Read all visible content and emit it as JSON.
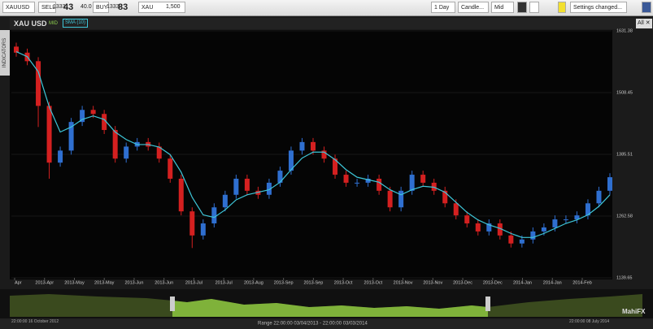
{
  "toolbar": {
    "symbol": "XAUUSD",
    "sell_label": "SELL",
    "sell_price_main": "1333.",
    "sell_price_pips": "43",
    "spread": "40.0",
    "buy_label": "BUY",
    "buy_price_main": "1333.",
    "buy_price_pips": "83",
    "asset": "XAU",
    "amount": "1,500",
    "period": "1 Day",
    "chart_style": "Candle...",
    "price_type": "Mid",
    "settings": "Settings changed..."
  },
  "chart_header": {
    "instrument": "XAU USD",
    "mid_badge": "MID",
    "indicator": "SMA (10)",
    "close_all": "All ✕",
    "side_tab": "INDICATORS"
  },
  "chart_data": {
    "type": "candlestick",
    "open": [
      1600,
      1588,
      1571,
      1482,
      1369,
      1393,
      1450,
      1474,
      1466,
      1434,
      1377,
      1401,
      1410,
      1401,
      1377,
      1337,
      1272,
      1224,
      1248,
      1280,
      1305,
      1337,
      1313,
      1305,
      1329,
      1353,
      1393,
      1410,
      1393,
      1377,
      1345,
      1329,
      1329,
      1337,
      1313,
      1280,
      1313,
      1345,
      1329,
      1313,
      1288,
      1264,
      1248,
      1232,
      1248,
      1224,
      1208,
      1216,
      1232,
      1240,
      1256,
      1256,
      1264,
      1288,
      1313
    ],
    "high": [
      1608,
      1596,
      1579,
      1490,
      1401,
      1458,
      1482,
      1482,
      1474,
      1442,
      1409,
      1418,
      1418,
      1409,
      1385,
      1345,
      1280,
      1256,
      1288,
      1313,
      1345,
      1345,
      1321,
      1337,
      1361,
      1401,
      1418,
      1418,
      1401,
      1385,
      1353,
      1337,
      1345,
      1345,
      1321,
      1321,
      1353,
      1353,
      1337,
      1321,
      1296,
      1272,
      1256,
      1256,
      1256,
      1232,
      1224,
      1240,
      1248,
      1264,
      1264,
      1272,
      1296,
      1321,
      1348
    ],
    "low": [
      1580,
      1563,
      1440,
      1337,
      1361,
      1385,
      1442,
      1458,
      1426,
      1369,
      1369,
      1393,
      1393,
      1369,
      1329,
      1264,
      1199,
      1216,
      1240,
      1272,
      1297,
      1305,
      1297,
      1297,
      1321,
      1345,
      1385,
      1385,
      1369,
      1337,
      1321,
      1321,
      1321,
      1305,
      1272,
      1272,
      1305,
      1321,
      1305,
      1280,
      1256,
      1240,
      1224,
      1224,
      1216,
      1200,
      1200,
      1208,
      1224,
      1232,
      1248,
      1248,
      1256,
      1280,
      1305
    ],
    "close": [
      1588,
      1571,
      1482,
      1369,
      1393,
      1450,
      1474,
      1466,
      1434,
      1377,
      1401,
      1410,
      1401,
      1377,
      1337,
      1272,
      1224,
      1248,
      1280,
      1305,
      1337,
      1313,
      1305,
      1329,
      1353,
      1393,
      1410,
      1393,
      1377,
      1345,
      1329,
      1329,
      1337,
      1313,
      1280,
      1313,
      1345,
      1329,
      1313,
      1288,
      1264,
      1248,
      1232,
      1248,
      1224,
      1208,
      1216,
      1232,
      1240,
      1256,
      1256,
      1264,
      1288,
      1313,
      1340
    ],
    "sma": {
      "name": "SMA (10)",
      "color": "#3ec6d8",
      "values": [
        1590,
        1580,
        1550,
        1480,
        1430,
        1440,
        1455,
        1462,
        1455,
        1430,
        1415,
        1405,
        1405,
        1400,
        1385,
        1350,
        1300,
        1265,
        1260,
        1275,
        1295,
        1305,
        1310,
        1315,
        1330,
        1355,
        1378,
        1390,
        1390,
        1375,
        1355,
        1340,
        1335,
        1330,
        1315,
        1305,
        1315,
        1322,
        1320,
        1310,
        1290,
        1270,
        1255,
        1245,
        1238,
        1228,
        1220,
        1220,
        1228,
        1238,
        1248,
        1255,
        1265,
        1282,
        1305
      ]
    },
    "up_color": "#2f6fd0",
    "down_color": "#d42020",
    "ylim": [
      1139.65,
      1631.38
    ],
    "yticks": [
      1139.65,
      1262.58,
      1385.51,
      1508.45,
      1631.38
    ],
    "grid": true,
    "x_labels": [
      "Apr",
      "2013-Apr",
      "2013-May",
      "2013-May",
      "2013-Jun",
      "2013-Jun",
      "2013-Jul",
      "2013-Jul",
      "2013-Aug",
      "2013-Sep",
      "2013-Sep",
      "2013-Oct",
      "2013-Oct",
      "2013-Nov",
      "2013-Nov",
      "2013-Dec",
      "2013-Dec",
      "2014-Jan",
      "2014-Jan",
      "2014-Feb"
    ]
  },
  "navigator": {
    "start": "22:00:00 16 October 2012",
    "range": "Range 22:00:00 03/04/2013 - 22:00:00 03/03/2014",
    "end": "22:00:00 08 July 2014",
    "logo": "MahiFX"
  }
}
